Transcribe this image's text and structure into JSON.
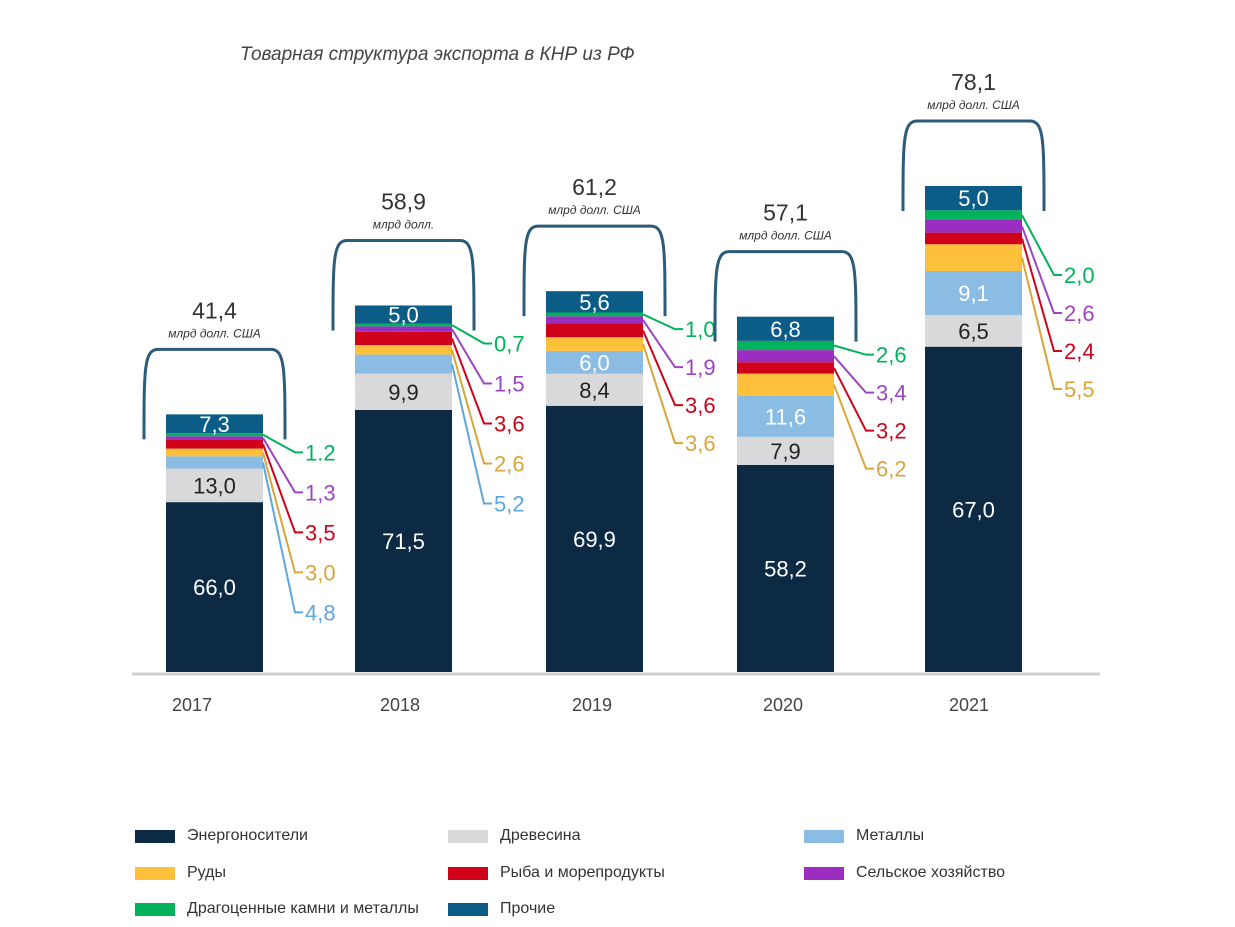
{
  "chart_data": {
    "type": "bar",
    "stacked": true,
    "title": "Товарная структура экспорта в КНР из РФ",
    "xlabel": "",
    "ylabel": "",
    "unit_label": "млрд долл. США",
    "categories": [
      "2017",
      "2018",
      "2019",
      "2020",
      "2021"
    ],
    "totals": [
      {
        "value": "41,4",
        "unit": "млрд долл. США"
      },
      {
        "value": "58,9",
        "unit": "млрд долл."
      },
      {
        "value": "61,2",
        "unit": "млрд долл. США"
      },
      {
        "value": "57,1",
        "unit": "млрд долл. США"
      },
      {
        "value": "78,1",
        "unit": "млрд долл. США"
      }
    ],
    "series": [
      {
        "name": "Энергоносители",
        "color": "#0d2a45",
        "values": [
          66.0,
          71.5,
          69.9,
          58.2,
          67.0
        ],
        "labels": [
          "66,0",
          "71,5",
          "69,9",
          "58,2",
          "67,0"
        ],
        "label_mode": "inside",
        "label_color": "#ffffff"
      },
      {
        "name": "Древесина",
        "color": "#d9d9db",
        "values": [
          13.0,
          9.9,
          8.4,
          7.9,
          6.5
        ],
        "labels": [
          "13,0",
          "9,9",
          "8,4",
          "7,9",
          "6,5"
        ],
        "label_mode": "inside",
        "label_color": "#222222"
      },
      {
        "name": "Металлы",
        "color": "#8bbde4",
        "values": [
          4.8,
          5.2,
          6.0,
          11.6,
          9.1
        ],
        "labels": [
          "4,8",
          "5,2",
          "6,0",
          "11,6",
          "9,1"
        ],
        "label_mode": [
          "callout",
          "callout",
          "inside",
          "inside",
          "inside"
        ],
        "label_color": "#ffffff",
        "callout_color": "#5fa6dc"
      },
      {
        "name": "Руды",
        "color": "#fdc03a",
        "values": [
          3.0,
          2.6,
          3.6,
          6.2,
          5.5
        ],
        "labels": [
          "3,0",
          "2,6",
          "3,6",
          "6,2",
          "5,5"
        ],
        "label_mode": "callout",
        "callout_color": "#d9a53a"
      },
      {
        "name": "Рыба и морепродукты",
        "color": "#d0021b",
        "values": [
          3.5,
          3.6,
          3.6,
          3.2,
          2.4
        ],
        "labels": [
          "3,5",
          "3,6",
          "3,6",
          "3,2",
          "2,4"
        ],
        "label_mode": "callout",
        "callout_color": "#d0021b"
      },
      {
        "name": "Сельское хозяйство",
        "color": "#9b2ec0",
        "values": [
          1.3,
          1.5,
          1.9,
          3.4,
          2.6
        ],
        "labels": [
          "1,3",
          "1,5",
          "1,9",
          "3,4",
          "2,6"
        ],
        "label_mode": "callout",
        "callout_color": "#9b45c0"
      },
      {
        "name": "Драгоценные камни и металлы",
        "color": "#00b35a",
        "values": [
          1.2,
          0.7,
          1.0,
          2.6,
          2.0
        ],
        "labels": [
          "1.2",
          "0,7",
          "1,0",
          "2,6",
          "2,0"
        ],
        "label_mode": "callout",
        "callout_color": "#00b35a"
      },
      {
        "name": "Прочие",
        "color": "#0b5c86",
        "values": [
          7.3,
          5.0,
          5.6,
          6.8,
          5.0
        ],
        "labels": [
          "7,3",
          "5,0",
          "5,6",
          "6,8",
          "5,0"
        ],
        "label_mode": "inside",
        "label_color": "#ffffff"
      }
    ],
    "legend_position": "bottom",
    "grid": false
  },
  "legend": [
    {
      "label": "Энергоносители",
      "color": "#0d2a45"
    },
    {
      "label": "Древесина",
      "color": "#d9d9db"
    },
    {
      "label": "Металлы",
      "color": "#8bbde4"
    },
    {
      "label": "Руды",
      "color": "#fdc03a"
    },
    {
      "label": "Рыба и морепродукты",
      "color": "#d0021b"
    },
    {
      "label": "Сельское хозяйство",
      "color": "#9b2ec0"
    },
    {
      "label": "Драгоценные камни и металлы",
      "color": "#00b35a"
    },
    {
      "label": "Прочие",
      "color": "#0b5c86"
    }
  ]
}
